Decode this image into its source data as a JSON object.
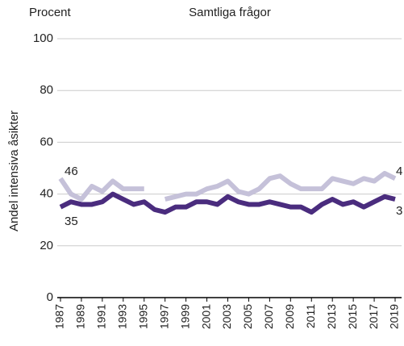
{
  "chart_data": {
    "type": "line",
    "title": "Samtliga frågor",
    "unit_label": "Procent",
    "ylabel": "Andel intensiva åsikter",
    "x": [
      1987,
      1988,
      1989,
      1990,
      1991,
      1992,
      1993,
      1994,
      1995,
      1996,
      1997,
      1998,
      1999,
      2000,
      2001,
      2002,
      2003,
      2004,
      2005,
      2006,
      2007,
      2008,
      2009,
      2010,
      2011,
      2012,
      2013,
      2014,
      2015,
      2016,
      2017,
      2018,
      2019
    ],
    "series": [
      {
        "color": "#c5c1d9",
        "values": [
          46,
          40,
          38,
          43,
          41,
          45,
          42,
          42,
          42,
          null,
          38,
          39,
          40,
          40,
          42,
          43,
          45,
          41,
          40,
          42,
          46,
          47,
          44,
          42,
          42,
          42,
          46,
          45,
          44,
          46,
          45,
          48,
          46
        ]
      },
      {
        "color": "#4a2c7e",
        "values": [
          35,
          37,
          36,
          36,
          37,
          40,
          38,
          36,
          37,
          34,
          33,
          35,
          35,
          37,
          37,
          36,
          39,
          37,
          36,
          36,
          37,
          36,
          35,
          35,
          33,
          36,
          38,
          36,
          37,
          35,
          37,
          39,
          38
        ]
      }
    ],
    "annotations": [
      "46",
      "35",
      "4",
      "3"
    ],
    "xlim": [
      1987,
      2019
    ],
    "xticks": [
      1987,
      1989,
      1991,
      1993,
      1995,
      1997,
      1999,
      2001,
      2003,
      2005,
      2007,
      2009,
      2011,
      2013,
      2015,
      2017,
      2019
    ],
    "ylim": [
      0,
      100
    ],
    "yticks": [
      0,
      20,
      40,
      60,
      80,
      100
    ],
    "grid": true
  }
}
